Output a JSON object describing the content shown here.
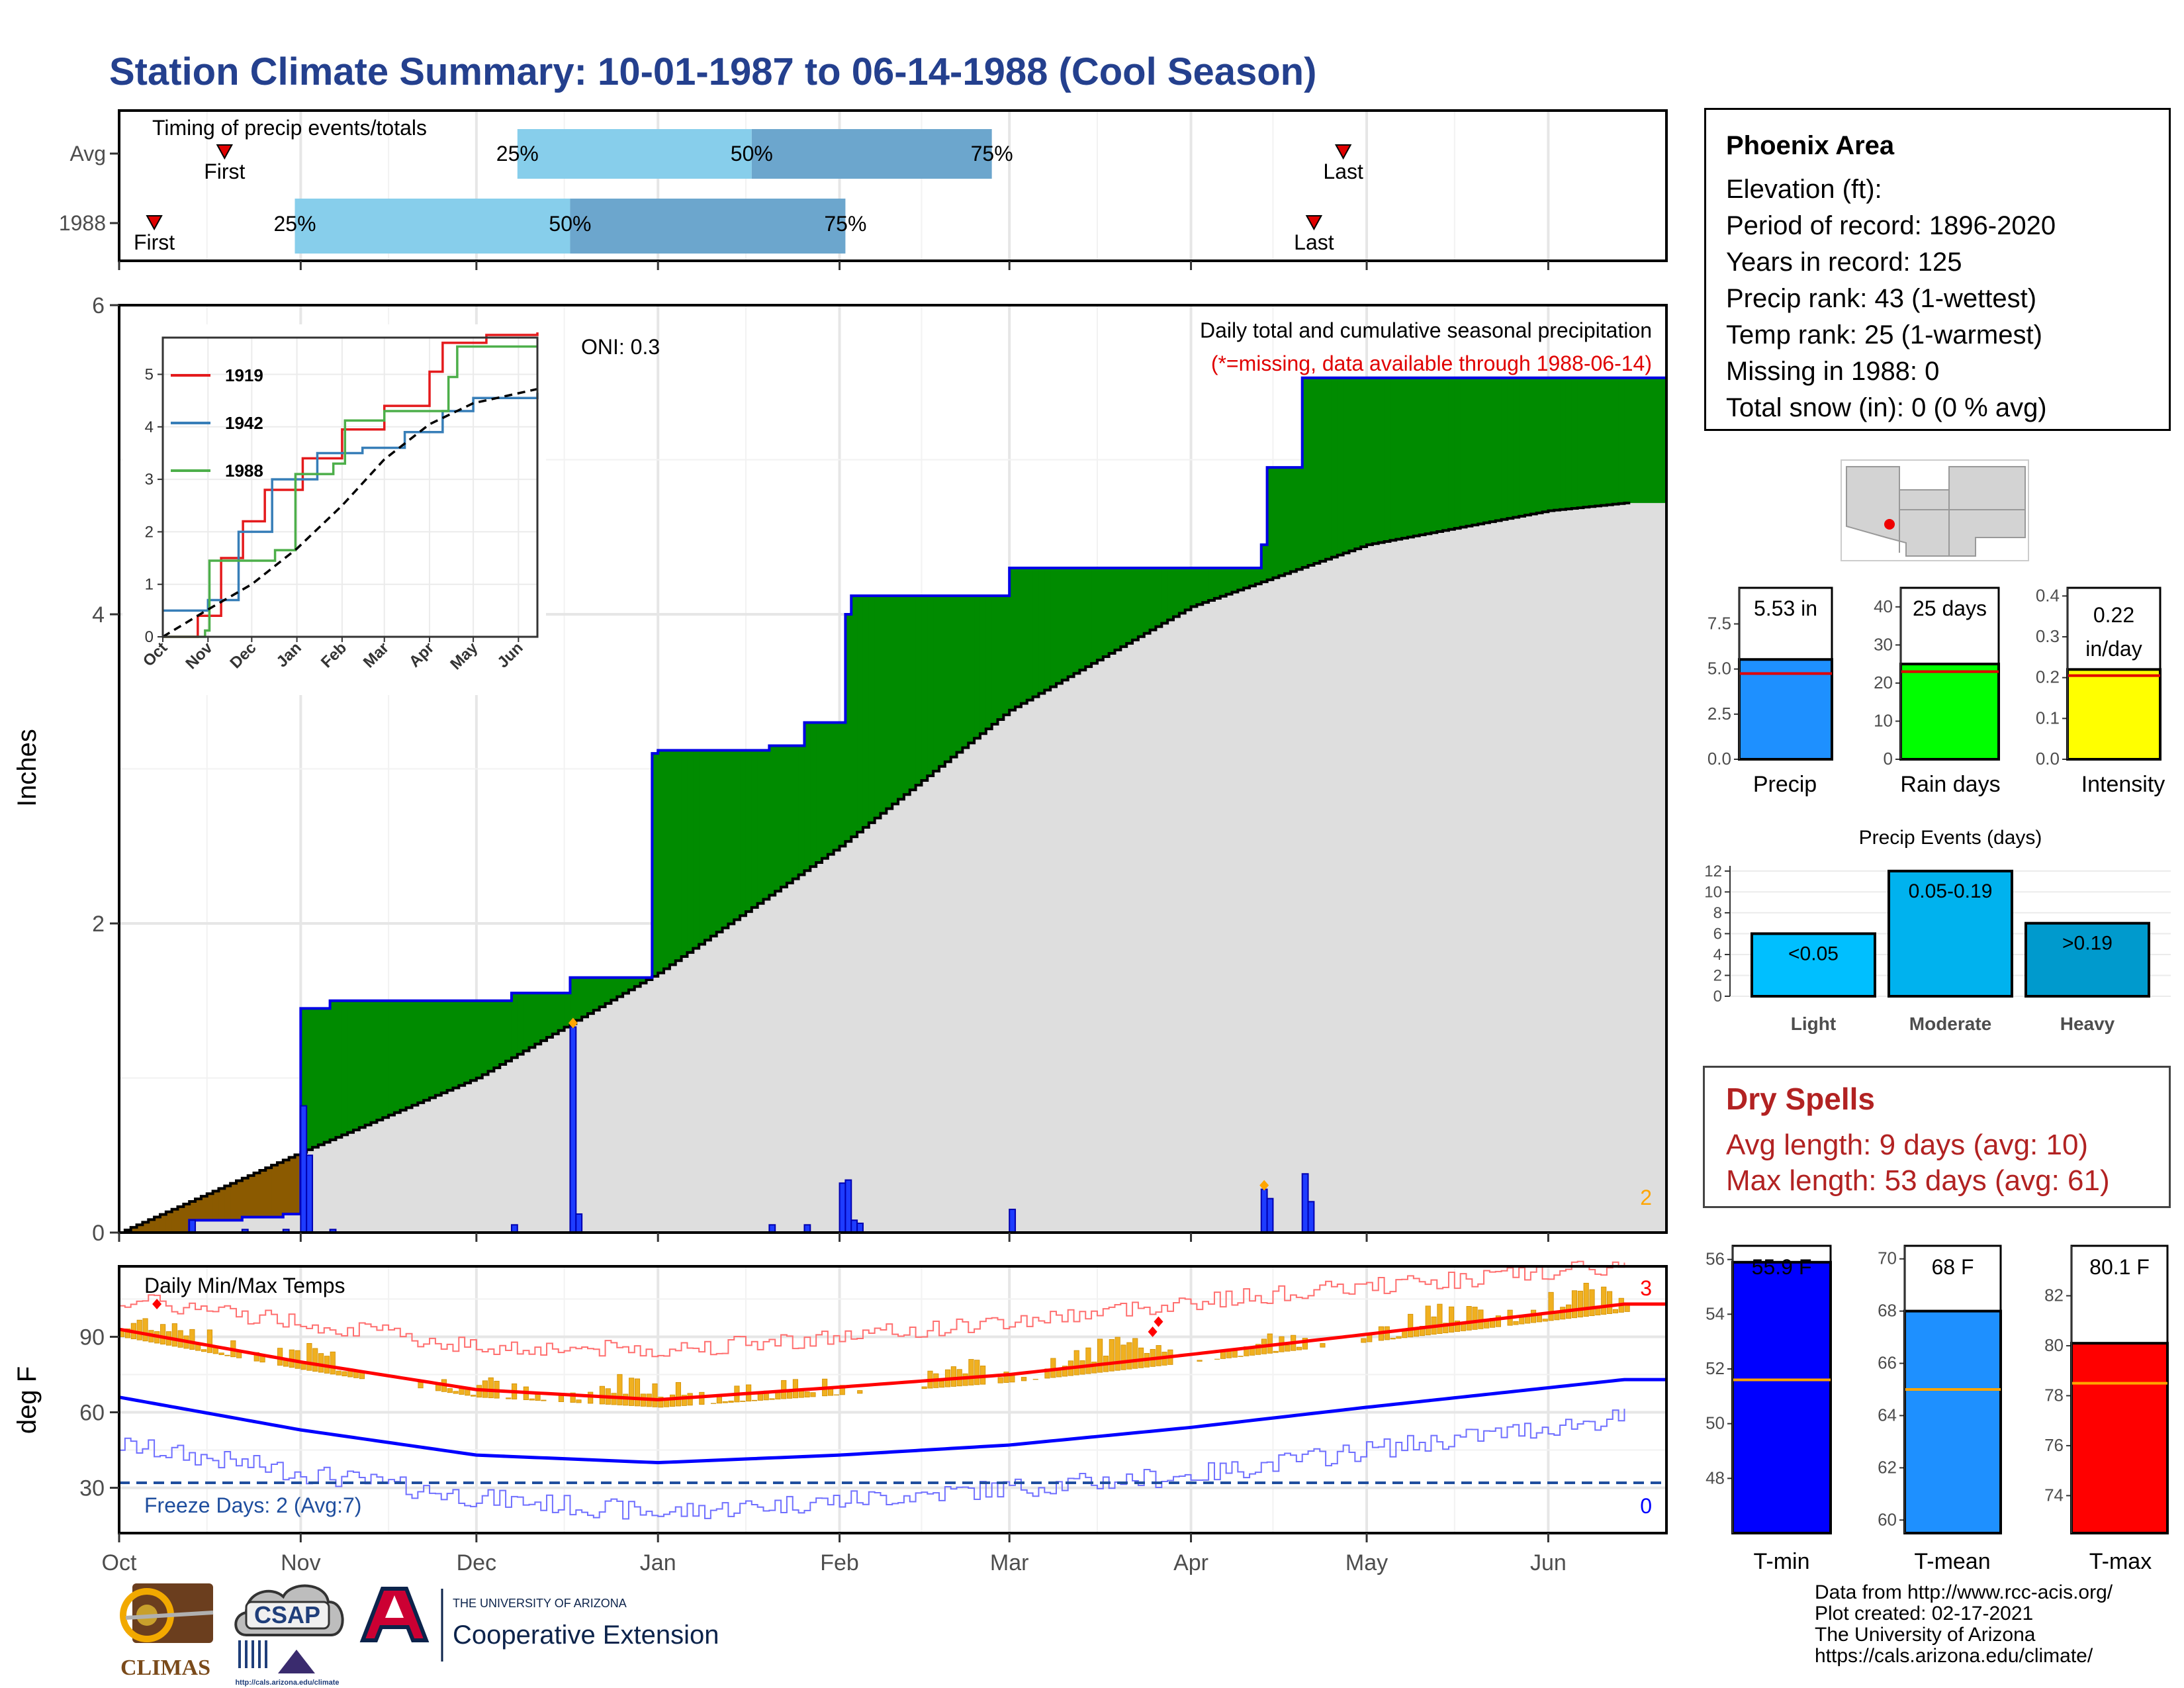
{
  "title": "Station Climate Summary: 10-01-1987 to 06-14-1988 (Cool Season)",
  "timing": {
    "label": "Timing of precip events/totals",
    "rows": [
      "Avg",
      "1988"
    ],
    "first_label": "First",
    "last_label": "Last",
    "p25_label": "25%",
    "p50_label": "50%",
    "p75_label": "75%"
  },
  "main_panel": {
    "ylabel": "Inches",
    "oni": "ONI: 0.3",
    "legend_line1": "Daily total and cumulative seasonal precipitation",
    "legend_line2": "(*=missing, data available through 1988-06-14)",
    "count_label": "2",
    "y_ticks": [
      "0",
      "2",
      "4",
      "6"
    ]
  },
  "temp_panel": {
    "ylabel": "deg F",
    "label": "Daily Min/Max Temps",
    "freeze_label": "Freeze Days: 2 (Avg:7)",
    "count_max": "3",
    "count_min": "0",
    "y_ticks": [
      "30",
      "60",
      "90"
    ]
  },
  "month_labels": [
    "Oct",
    "Nov",
    "Dec",
    "Jan",
    "Feb",
    "Mar",
    "Apr",
    "May",
    "Jun"
  ],
  "inset": {
    "y_ticks": [
      "0",
      "1",
      "2",
      "3",
      "4",
      "5"
    ],
    "months": [
      "Oct",
      "Nov",
      "Dec",
      "Jan",
      "Feb",
      "Mar",
      "Apr",
      "May",
      "Jun"
    ],
    "legend": [
      "1919",
      "1942",
      "1988"
    ],
    "legend_colors": [
      "#e41a1c",
      "#377eb8",
      "#4daf4a"
    ]
  },
  "station": {
    "name": "Phoenix Area",
    "lines": [
      "Elevation (ft):",
      "Period of record: 1896-2020",
      "Years in record: 125",
      "Precip rank: 43 (1-wettest)",
      "Temp rank: 25 (1-warmest)",
      "Missing in 1988: 0",
      "Total snow (in): 0 (0 % avg)"
    ]
  },
  "mini_bars": {
    "precip": {
      "label": "Precip",
      "value_text": "5.53 in",
      "value": 5.53,
      "avg": 4.75,
      "max": 9.5,
      "ticks": [
        "0.0",
        "2.5",
        "5.0",
        "7.5"
      ],
      "color": "#1e90ff"
    },
    "rain_days": {
      "label": "Rain days",
      "value_text": "25 days",
      "value": 25,
      "avg": 23,
      "max": 45,
      "ticks": [
        "0",
        "10",
        "20",
        "30",
        "40"
      ],
      "color": "#00ff00"
    },
    "intensity": {
      "label": "Intensity",
      "value_text1": "0.22",
      "value_text2": "in/day",
      "value": 0.22,
      "avg": 0.205,
      "max": 0.42,
      "ticks": [
        "0.0",
        "0.1",
        "0.2",
        "0.3",
        "0.4"
      ],
      "color": "#ffff00"
    }
  },
  "precip_events": {
    "title": "Precip Events (days)",
    "ticks": [
      "0",
      "2",
      "4",
      "6",
      "8",
      "10",
      "12"
    ],
    "bars": [
      {
        "label": "Light",
        "range": "<0.05",
        "value": 6,
        "color": "#00bfff"
      },
      {
        "label": "Moderate",
        "range": "0.05-0.19",
        "value": 12,
        "color": "#00b2ee"
      },
      {
        "label": "Heavy",
        "range": ">0.19",
        "value": 7,
        "color": "#009acd"
      }
    ]
  },
  "dry_spells": {
    "title": "Dry Spells",
    "avg_line": "Avg length: 9 days (avg: 10)",
    "max_line": "Max length: 53 days (avg: 61)"
  },
  "temp_bars": {
    "tmin": {
      "label": "T-min",
      "value_text": "55.9 F",
      "value": 55.9,
      "avg": 51.6,
      "min": 46,
      "max": 56.5,
      "ticks": [
        "48",
        "50",
        "52",
        "54",
        "56"
      ],
      "color": "#0000ff"
    },
    "tmean": {
      "label": "T-mean",
      "value_text": "68 F",
      "value": 68,
      "avg": 65,
      "min": 59.5,
      "max": 70.5,
      "ticks": [
        "60",
        "62",
        "64",
        "66",
        "68",
        "70"
      ],
      "color": "#1e90ff"
    },
    "tmax": {
      "label": "T-max",
      "value_text": "80.1 F",
      "value": 80.1,
      "avg": 78.5,
      "min": 72.5,
      "max": 84,
      "ticks": [
        "74",
        "76",
        "78",
        "80",
        "82"
      ],
      "color": "#ff0000"
    }
  },
  "credits": [
    "Data from http://www.rcc-acis.org/",
    "Plot created: 02-17-2021",
    "The University of Arizona",
    "https://cals.arizona.edu/climate/"
  ],
  "logos": {
    "climas": "CLIMAS",
    "csap": "CSAP",
    "csap_url": "http://cals.arizona.edu/climate",
    "ua_small": "THE UNIVERSITY OF ARIZONA",
    "ua_big": "Cooperative Extension"
  },
  "chart_data": [
    {
      "type": "area",
      "title": "Daily total and cumulative seasonal precipitation",
      "ylabel": "Inches",
      "ylim": [
        0,
        6
      ],
      "x_range": [
        "1987-10-01",
        "1988-06-14"
      ],
      "cumulative_1988_steps": [
        {
          "date": "1987-10-01",
          "value": 0.0
        },
        {
          "date": "1987-10-13",
          "value": 0.08
        },
        {
          "date": "1987-10-22",
          "value": 0.1
        },
        {
          "date": "1987-10-29",
          "value": 0.12
        },
        {
          "date": "1987-11-01",
          "value": 1.45
        },
        {
          "date": "1987-11-06",
          "value": 1.5
        },
        {
          "date": "1987-12-07",
          "value": 1.55
        },
        {
          "date": "1987-12-17",
          "value": 1.65
        },
        {
          "date": "1987-12-31",
          "value": 3.1
        },
        {
          "date": "1988-01-01",
          "value": 3.12
        },
        {
          "date": "1988-01-20",
          "value": 3.15
        },
        {
          "date": "1988-01-26",
          "value": 3.3
        },
        {
          "date": "1988-02-02",
          "value": 4.0
        },
        {
          "date": "1988-02-03",
          "value": 4.12
        },
        {
          "date": "1988-03-01",
          "value": 4.3
        },
        {
          "date": "1988-04-13",
          "value": 4.45
        },
        {
          "date": "1988-04-14",
          "value": 4.95
        },
        {
          "date": "1988-04-20",
          "value": 5.53
        },
        {
          "date": "1988-06-14",
          "value": 5.53
        }
      ],
      "normal_cumulative": [
        {
          "date": "1987-10-01",
          "value": 0.0
        },
        {
          "date": "1987-11-01",
          "value": 0.52
        },
        {
          "date": "1987-12-01",
          "value": 1.0
        },
        {
          "date": "1988-01-01",
          "value": 1.68
        },
        {
          "date": "1988-02-01",
          "value": 2.5
        },
        {
          "date": "1988-03-01",
          "value": 3.38
        },
        {
          "date": "1988-04-01",
          "value": 4.05
        },
        {
          "date": "1988-05-01",
          "value": 4.45
        },
        {
          "date": "1988-06-01",
          "value": 4.67
        },
        {
          "date": "1988-06-14",
          "value": 4.72
        }
      ],
      "daily_precip": [
        {
          "date": "1987-10-13",
          "value": 0.08
        },
        {
          "date": "1987-10-22",
          "value": 0.02
        },
        {
          "date": "1987-10-29",
          "value": 0.02
        },
        {
          "date": "1987-11-01",
          "value": 0.82
        },
        {
          "date": "1987-11-02",
          "value": 0.5
        },
        {
          "date": "1987-11-06",
          "value": 0.02
        },
        {
          "date": "1987-12-07",
          "value": 0.05
        },
        {
          "date": "1987-12-17",
          "value": 1.33
        },
        {
          "date": "1987-12-18",
          "value": 0.12
        },
        {
          "date": "1988-01-20",
          "value": 0.05
        },
        {
          "date": "1988-01-26",
          "value": 0.05
        },
        {
          "date": "1988-02-01",
          "value": 0.32
        },
        {
          "date": "1988-02-02",
          "value": 0.34
        },
        {
          "date": "1988-02-03",
          "value": 0.08
        },
        {
          "date": "1988-02-04",
          "value": 0.06
        },
        {
          "date": "1988-03-01",
          "value": 0.15
        },
        {
          "date": "1988-04-13",
          "value": 0.28
        },
        {
          "date": "1988-04-14",
          "value": 0.22
        },
        {
          "date": "1988-04-20",
          "value": 0.38
        },
        {
          "date": "1988-04-21",
          "value": 0.2
        }
      ]
    },
    {
      "type": "line",
      "title": "",
      "x_range": [
        "1987-10-01",
        "1988-06-14"
      ],
      "ylim": [
        0,
        5.7
      ],
      "series": [
        {
          "name": "1919",
          "points": [
            [
              "1987-10-01",
              0
            ],
            [
              "1987-10-25",
              0.4
            ],
            [
              "1987-11-10",
              1.5
            ],
            [
              "1987-11-25",
              2.2
            ],
            [
              "1987-12-10",
              2.8
            ],
            [
              "1988-01-05",
              3.4
            ],
            [
              "1988-02-01",
              3.95
            ],
            [
              "1988-03-01",
              4.4
            ],
            [
              "1988-04-01",
              5.05
            ],
            [
              "1988-04-10",
              5.6
            ],
            [
              "1988-05-10",
              5.75
            ],
            [
              "1988-06-14",
              5.8
            ]
          ]
        },
        {
          "name": "1942",
          "points": [
            [
              "1987-10-01",
              0.5
            ],
            [
              "1987-11-01",
              0.7
            ],
            [
              "1987-11-22",
              2.0
            ],
            [
              "1987-12-15",
              3.0
            ],
            [
              "1988-01-15",
              3.5
            ],
            [
              "1988-02-15",
              3.6
            ],
            [
              "1988-03-15",
              3.9
            ],
            [
              "1988-04-10",
              4.3
            ],
            [
              "1988-05-01",
              4.55
            ],
            [
              "1988-06-14",
              4.65
            ]
          ]
        },
        {
          "name": "1988",
          "points": [
            [
              "1987-10-01",
              0
            ],
            [
              "1987-10-30",
              0.12
            ],
            [
              "1987-11-02",
              1.45
            ],
            [
              "1987-12-17",
              1.65
            ],
            [
              "1987-12-31",
              3.1
            ],
            [
              "1988-01-26",
              3.3
            ],
            [
              "1988-02-03",
              4.12
            ],
            [
              "1988-03-01",
              4.3
            ],
            [
              "1988-04-14",
              4.95
            ],
            [
              "1988-04-20",
              5.53
            ],
            [
              "1988-06-14",
              5.53
            ]
          ]
        }
      ],
      "normal_dashed": [
        [
          "1987-10-01",
          0
        ],
        [
          "1987-11-01",
          0.52
        ],
        [
          "1987-12-01",
          1.0
        ],
        [
          "1988-01-01",
          1.68
        ],
        [
          "1988-02-01",
          2.5
        ],
        [
          "1988-03-01",
          3.38
        ],
        [
          "1988-04-01",
          4.05
        ],
        [
          "1988-05-01",
          4.45
        ],
        [
          "1988-06-14",
          4.72
        ]
      ]
    },
    {
      "type": "bar",
      "title": "Daily Min/Max Temps",
      "ylabel": "deg F",
      "ylim": [
        12,
        118
      ],
      "freeze_threshold": 32,
      "x_range": [
        "1987-10-01",
        "1988-06-14"
      ],
      "normal_tmax": [
        [
          "1987-10-01",
          93
        ],
        [
          "1987-11-01",
          80
        ],
        [
          "1987-12-01",
          69
        ],
        [
          "1988-01-01",
          65
        ],
        [
          "1988-02-01",
          70
        ],
        [
          "1988-03-01",
          75
        ],
        [
          "1988-04-01",
          83
        ],
        [
          "1988-05-01",
          91
        ],
        [
          "1988-06-14",
          103
        ]
      ],
      "normal_tmin": [
        [
          "1987-10-01",
          66
        ],
        [
          "1987-11-01",
          53
        ],
        [
          "1987-12-01",
          43
        ],
        [
          "1988-01-01",
          40
        ],
        [
          "1988-02-01",
          43
        ],
        [
          "1988-03-01",
          47
        ],
        [
          "1988-04-01",
          54
        ],
        [
          "1988-05-01",
          62
        ],
        [
          "1988-06-14",
          73
        ]
      ],
      "record_high": [
        [
          "1987-10-01",
          105
        ],
        [
          "1987-11-01",
          96
        ],
        [
          "1987-12-01",
          86
        ],
        [
          "1988-01-01",
          85
        ],
        [
          "1988-02-01",
          90
        ],
        [
          "1988-03-01",
          96
        ],
        [
          "1988-04-01",
          104
        ],
        [
          "1988-05-01",
          110
        ],
        [
          "1988-06-14",
          118
        ]
      ],
      "record_low": [
        [
          "1987-10-01",
          47
        ],
        [
          "1987-11-01",
          36
        ],
        [
          "1987-12-01",
          26
        ],
        [
          "1988-01-01",
          20
        ],
        [
          "1988-02-01",
          25
        ],
        [
          "1988-03-01",
          30
        ],
        [
          "1988-04-01",
          35
        ],
        [
          "1988-05-01",
          45
        ],
        [
          "1988-06-14",
          58
        ]
      ]
    },
    {
      "type": "bar",
      "title": "Precip Events (days)",
      "categories": [
        "Light",
        "Moderate",
        "Heavy"
      ],
      "values": [
        6,
        12,
        7
      ],
      "ylim": [
        0,
        12.5
      ]
    }
  ]
}
